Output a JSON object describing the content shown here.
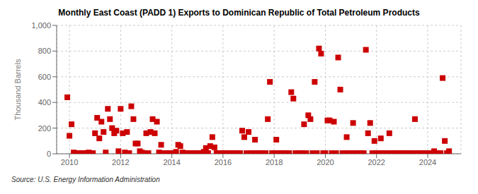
{
  "chart_data": {
    "type": "scatter",
    "title": "Monthly East Coast (PADD 1) Exports to Dominican Republic of Total Petroleum Products",
    "ylabel": "Thousand Barrels",
    "annotations": [
      "Source: U.S. Energy Information Administration"
    ],
    "color": "#cc0000",
    "marker": "square",
    "grid": true,
    "xlim": [
      2009.5,
      2025.3
    ],
    "xticks": [
      2010,
      2012,
      2014,
      2016,
      2018,
      2020,
      2022,
      2024
    ],
    "ylim": [
      0,
      1000
    ],
    "yticks": [
      0,
      200,
      400,
      600,
      800,
      {
        "value": 1000,
        "label": "1,000"
      }
    ],
    "x": [
      2009.917,
      2010.0,
      2010.083,
      2010.167,
      2010.25,
      2010.333,
      2010.417,
      2010.5,
      2010.583,
      2010.667,
      2010.75,
      2010.833,
      2010.917,
      2011.0,
      2011.083,
      2011.167,
      2011.25,
      2011.333,
      2011.417,
      2011.5,
      2011.583,
      2011.667,
      2011.75,
      2011.833,
      2011.917,
      2012.0,
      2012.083,
      2012.167,
      2012.25,
      2012.333,
      2012.417,
      2012.5,
      2012.583,
      2012.667,
      2012.75,
      2012.833,
      2012.917,
      2013.0,
      2013.083,
      2013.167,
      2013.25,
      2013.333,
      2013.417,
      2013.5,
      2013.583,
      2013.667,
      2013.75,
      2013.833,
      2013.917,
      2014.0,
      2014.083,
      2014.167,
      2014.25,
      2014.333,
      2014.417,
      2014.5,
      2014.583,
      2014.667,
      2014.75,
      2014.833,
      2014.917,
      2015.0,
      2015.083,
      2015.167,
      2015.25,
      2015.333,
      2015.417,
      2015.5,
      2015.583,
      2015.667,
      2015.75,
      2015.833,
      2015.917,
      2016.0,
      2016.083,
      2016.167,
      2016.25,
      2016.333,
      2016.417,
      2016.5,
      2016.583,
      2016.667,
      2016.75,
      2016.833,
      2016.917,
      2017.0,
      2017.083,
      2017.167,
      2017.25,
      2017.333,
      2017.417,
      2017.5,
      2017.583,
      2017.667,
      2017.75,
      2017.833,
      2017.917,
      2018.0,
      2018.083,
      2018.167,
      2018.25,
      2018.333,
      2018.417,
      2018.5,
      2018.583,
      2018.667,
      2018.75,
      2018.833,
      2018.917,
      2019.0,
      2019.083,
      2019.167,
      2019.25,
      2019.333,
      2019.417,
      2019.5,
      2019.583,
      2019.667,
      2019.75,
      2019.833,
      2019.917,
      2020.0,
      2020.083,
      2020.167,
      2020.25,
      2020.333,
      2020.417,
      2020.5,
      2020.583,
      2020.667,
      2020.75,
      2020.833,
      2020.917,
      2021.0,
      2021.083,
      2021.167,
      2021.25,
      2021.333,
      2021.417,
      2021.5,
      2021.583,
      2021.667,
      2021.75,
      2021.833,
      2021.917,
      2022.0,
      2022.083,
      2022.167,
      2022.25,
      2022.333,
      2022.417,
      2022.5,
      2022.583,
      2022.667,
      2022.75,
      2022.833,
      2022.917,
      2023.0,
      2023.083,
      2023.167,
      2023.25,
      2023.333,
      2023.417,
      2023.5,
      2023.583,
      2023.667,
      2023.75,
      2023.833,
      2023.917,
      2024.0,
      2024.083,
      2024.167,
      2024.25,
      2024.333,
      2024.417,
      2024.5,
      2024.583,
      2024.667,
      2024.75,
      2024.833
    ],
    "values": [
      440,
      140,
      230,
      10,
      5,
      5,
      5,
      5,
      5,
      5,
      10,
      5,
      5,
      160,
      280,
      120,
      250,
      170,
      10,
      350,
      270,
      200,
      160,
      180,
      20,
      350,
      160,
      10,
      170,
      5,
      370,
      270,
      80,
      80,
      20,
      10,
      5,
      160,
      5,
      170,
      270,
      160,
      250,
      10,
      70,
      5,
      5,
      5,
      5,
      5,
      5,
      15,
      70,
      60,
      10,
      5,
      5,
      5,
      5,
      5,
      5,
      5,
      5,
      5,
      15,
      45,
      5,
      60,
      130,
      50,
      5,
      5,
      5,
      5,
      5,
      5,
      5,
      5,
      5,
      5,
      5,
      5,
      180,
      130,
      5,
      170,
      5,
      5,
      110,
      5,
      5,
      5,
      5,
      5,
      270,
      560,
      5,
      5,
      110,
      5,
      5,
      5,
      5,
      5,
      5,
      480,
      430,
      5,
      5,
      5,
      5,
      230,
      5,
      300,
      270,
      5,
      560,
      5,
      820,
      780,
      5,
      5,
      260,
      260,
      5,
      250,
      5,
      750,
      500,
      5,
      5,
      130,
      5,
      5,
      240,
      5,
      5,
      5,
      5,
      5,
      810,
      160,
      240,
      5,
      100,
      5,
      5,
      120,
      5,
      5,
      5,
      160,
      5,
      5,
      5,
      5,
      5,
      5,
      5,
      5,
      5,
      5,
      5,
      270,
      5,
      5,
      5,
      5,
      5,
      5,
      5,
      5,
      20,
      5,
      5,
      5,
      590,
      100,
      5,
      20
    ]
  }
}
